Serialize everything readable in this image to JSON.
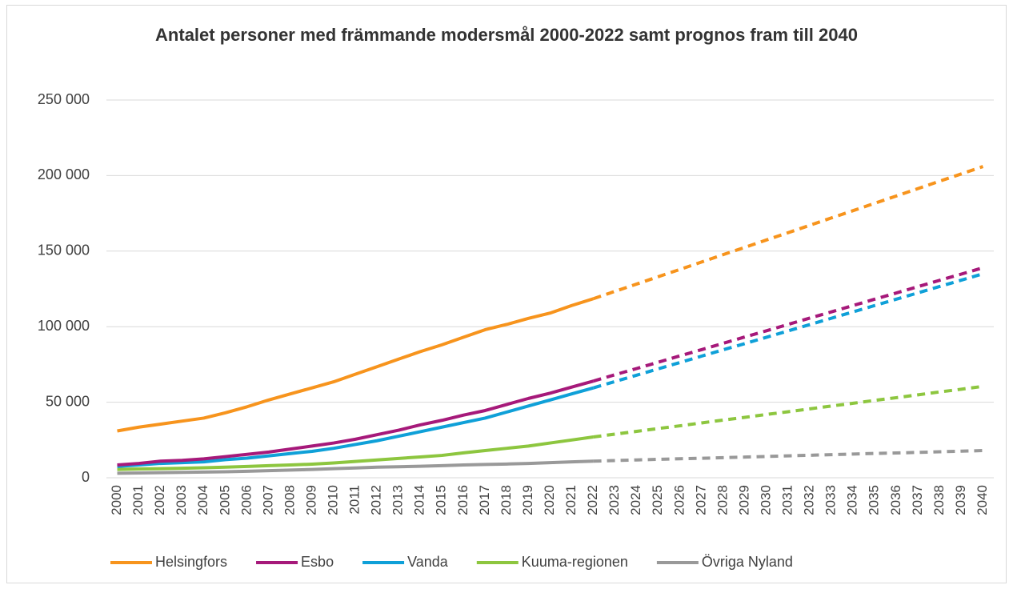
{
  "chart_data": {
    "type": "line",
    "title": "Antalet personer med främmande modersmål 2000-2022 samt prognos fram till 2040",
    "categories": [
      "2000",
      "2001",
      "2002",
      "2003",
      "2004",
      "2005",
      "2006",
      "2007",
      "2008",
      "2009",
      "2010",
      "2011",
      "2012",
      "2013",
      "2014",
      "2015",
      "2016",
      "2017",
      "2018",
      "2019",
      "2020",
      "2021",
      "2022",
      "2023",
      "2024",
      "2025",
      "2026",
      "2027",
      "2028",
      "2029",
      "2030",
      "2031",
      "2032",
      "2033",
      "2034",
      "2035",
      "2036",
      "2037",
      "2038",
      "2039",
      "2040"
    ],
    "forecast_from": "2022",
    "series": [
      {
        "name": "Helsingfors",
        "color": "#f7941d",
        "values": [
          31000,
          33500,
          35500,
          37500,
          39500,
          43000,
          47000,
          51500,
          55500,
          59500,
          63500,
          68500,
          73500,
          78500,
          83500,
          88000,
          93000,
          98000,
          101500,
          105500,
          109000,
          114000,
          118500,
          123400,
          128200,
          133100,
          137900,
          142800,
          147700,
          152500,
          157400,
          162200,
          167100,
          172000,
          176800,
          181700,
          186500,
          191400,
          196300,
          201100,
          206000
        ]
      },
      {
        "name": "Esbo",
        "color": "#a6197a",
        "values": [
          8500,
          9500,
          11000,
          11500,
          12500,
          14000,
          15500,
          17000,
          19000,
          21000,
          23000,
          25500,
          28500,
          31500,
          35000,
          38000,
          41500,
          44500,
          48500,
          52500,
          56000,
          60000,
          64000,
          68200,
          72300,
          76500,
          80700,
          84800,
          89000,
          93200,
          97300,
          101500,
          105700,
          109800,
          114000,
          118200,
          122300,
          126500,
          130700,
          134800,
          139000
        ]
      },
      {
        "name": "Vanda",
        "color": "#0fa0d8",
        "values": [
          7500,
          8500,
          9500,
          10000,
          10500,
          12000,
          13000,
          14500,
          16000,
          17500,
          19500,
          22000,
          24500,
          27500,
          30500,
          33500,
          36500,
          39500,
          43500,
          47500,
          51500,
          55500,
          59500,
          63700,
          67900,
          72100,
          76300,
          80500,
          84700,
          88800,
          93000,
          97200,
          101400,
          105600,
          109800,
          114000,
          118200,
          122400,
          126600,
          130800,
          135000
        ]
      },
      {
        "name": "Kuuma-regionen",
        "color": "#8dc63f",
        "values": [
          5500,
          5800,
          6000,
          6300,
          6600,
          7000,
          7500,
          8000,
          8500,
          9000,
          9800,
          10800,
          11800,
          12800,
          13800,
          14800,
          16500,
          18000,
          19500,
          21000,
          23000,
          25000,
          27000,
          28900,
          30700,
          32600,
          34400,
          36300,
          38200,
          40000,
          41900,
          43700,
          45600,
          47500,
          49300,
          51200,
          53000,
          54900,
          56800,
          58600,
          60500
        ]
      },
      {
        "name": "Övriga Nyland",
        "color": "#999999",
        "values": [
          3000,
          3200,
          3400,
          3600,
          3800,
          4000,
          4300,
          4700,
          5100,
          5500,
          6000,
          6500,
          7000,
          7300,
          7600,
          8000,
          8500,
          8800,
          9100,
          9500,
          10000,
          10500,
          11000,
          11400,
          11800,
          12200,
          12600,
          12900,
          13300,
          13700,
          14100,
          14500,
          14900,
          15300,
          15700,
          16100,
          16400,
          16800,
          17200,
          17600,
          18000
        ]
      }
    ],
    "ylim": [
      0,
      250000
    ],
    "yticks": [
      0,
      {
        "value": 50000,
        "label": "50 000"
      },
      {
        "value": 100000,
        "label": "100 000"
      },
      {
        "value": 150000,
        "label": "150 000"
      },
      {
        "value": 200000,
        "label": "200 000"
      },
      {
        "value": 250000,
        "label": "250 000"
      }
    ],
    "grid": true,
    "legend": "bottom"
  }
}
